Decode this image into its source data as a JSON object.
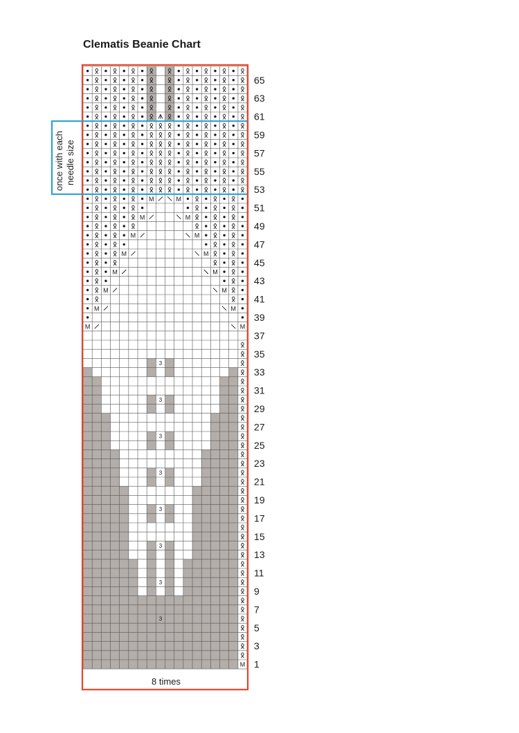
{
  "title": "Clematis Beanie Chart",
  "columns": 18,
  "rows": 66,
  "repeat_label": "8 times",
  "bracket_label_line1": "once with each",
  "bracket_label_line2": "needle size",
  "bracket_rows": [
    53,
    60
  ],
  "row_numbers": [
    "65",
    "63",
    "61",
    "59",
    "57",
    "55",
    "53",
    "51",
    "49",
    "47",
    "45",
    "43",
    "41",
    "39",
    "37",
    "35",
    "33",
    "31",
    "29",
    "27",
    "25",
    "23",
    "21",
    "19",
    "17",
    "15",
    "13",
    "11",
    "9",
    "7",
    "5",
    "3",
    "1"
  ],
  "colors": {
    "grid_line": "#555555",
    "shade": "#b3aeaa",
    "repeat_border": "#e8442b",
    "bracket_border": "#2aa0d6",
    "text": "#1a1a1a"
  },
  "symbols": {
    "p": "purl dot",
    "k": "knit through back loop (twisted)",
    "M": "make one",
    "/": "decrease right",
    "\\": "decrease left",
    "^": "central double decrease",
    "3": "3 from 1 increase"
  },
  "chart_rows": [
    "pkpkpkp..kpkpkpk",
    "pkpkpkp..kpkpkpk",
    "pkpkpkp..kpkpkpk",
    "pkpkpkp..kpkpkpk",
    "pkpkpkp..kpkpkpk",
    "pkpkpkp.^.kpkpkpk"
  ]
}
